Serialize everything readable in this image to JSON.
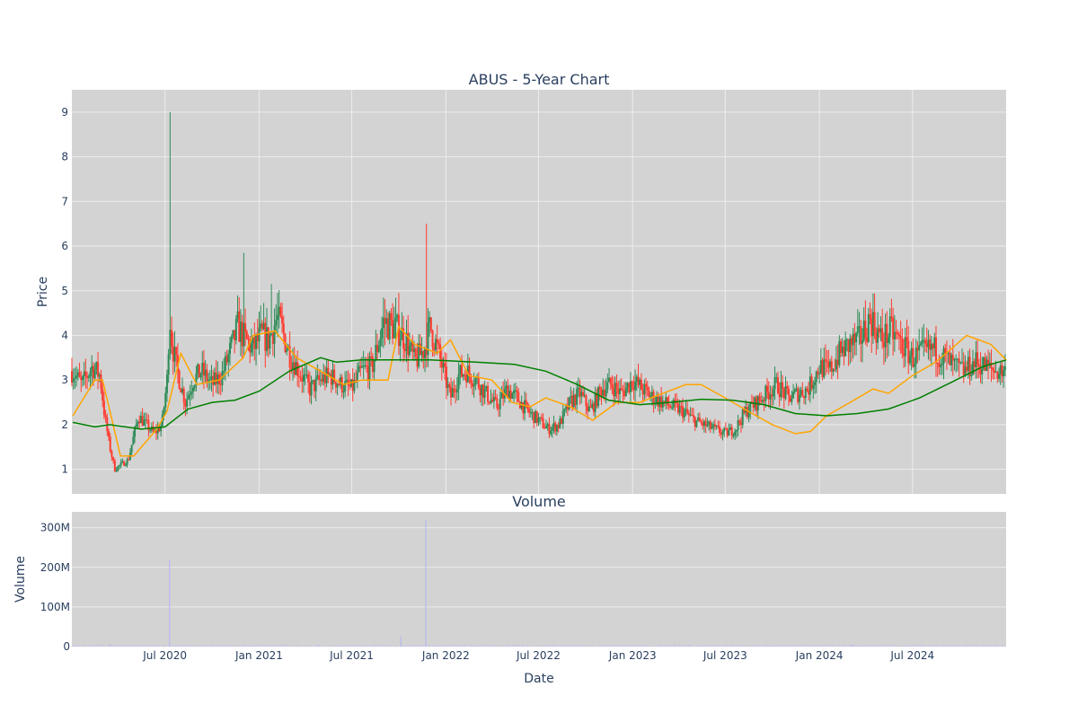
{
  "chart_data": [
    {
      "panel": "price",
      "type": "candlestick",
      "title": "ABUS - 5-Year Chart",
      "ylabel": "Price",
      "xlabel": "",
      "x_range": [
        "2020-01-01",
        "2024-12-31"
      ],
      "ylim": [
        0.45,
        9.5
      ],
      "y_ticks": [
        1,
        2,
        3,
        4,
        5,
        6,
        7,
        8,
        9
      ],
      "grid": true,
      "legend": "none",
      "colors": {
        "up": "#2e8b57",
        "down": "#ff3b30",
        "ma_short": "#ffa500",
        "ma_long": "#008000",
        "plot_bg": "#d3d3d3",
        "grid": "#ececec"
      },
      "series": [
        {
          "kind": "close_approx",
          "x": [
            "2020-01-03",
            "2020-01-20",
            "2020-02-10",
            "2020-02-25",
            "2020-03-05",
            "2020-03-15",
            "2020-03-25",
            "2020-04-05",
            "2020-04-20",
            "2020-05-10",
            "2020-05-25",
            "2020-06-10",
            "2020-06-25",
            "2020-07-05",
            "2020-07-10",
            "2020-07-15",
            "2020-07-25",
            "2020-08-10",
            "2020-08-25",
            "2020-09-10",
            "2020-10-01",
            "2020-10-20",
            "2020-11-10",
            "2020-11-20",
            "2020-12-05",
            "2020-12-20",
            "2021-01-05",
            "2021-01-20",
            "2021-02-05",
            "2021-02-15",
            "2021-03-01",
            "2021-03-20",
            "2021-04-10",
            "2021-05-01",
            "2021-05-20",
            "2021-06-10",
            "2021-07-01",
            "2021-07-20",
            "2021-08-10",
            "2021-09-01",
            "2021-09-20",
            "2021-10-01",
            "2021-10-15",
            "2021-11-01",
            "2021-11-20",
            "2021-12-01",
            "2021-12-10",
            "2021-12-20",
            "2022-01-10",
            "2022-01-25",
            "2022-02-10",
            "2022-03-01",
            "2022-03-20",
            "2022-04-10",
            "2022-05-01",
            "2022-05-20",
            "2022-06-10",
            "2022-07-01",
            "2022-07-20",
            "2022-08-10",
            "2022-09-01",
            "2022-09-20",
            "2022-10-10",
            "2022-11-01",
            "2022-11-20",
            "2022-12-10",
            "2023-01-01",
            "2023-01-20",
            "2023-02-10",
            "2023-03-01",
            "2023-03-20",
            "2023-04-10",
            "2023-05-01",
            "2023-05-20",
            "2023-06-10",
            "2023-07-01",
            "2023-07-20",
            "2023-08-10",
            "2023-09-01",
            "2023-09-20",
            "2023-10-10",
            "2023-11-01",
            "2023-11-20",
            "2023-12-10",
            "2024-01-01",
            "2024-01-20",
            "2024-02-10",
            "2024-03-01",
            "2024-03-20",
            "2024-04-10",
            "2024-05-01",
            "2024-05-20",
            "2024-06-10",
            "2024-07-01",
            "2024-07-20",
            "2024-08-10",
            "2024-09-01",
            "2024-09-20",
            "2024-10-10",
            "2024-11-01",
            "2024-11-20",
            "2024-12-10",
            "2024-12-31"
          ],
          "close": [
            3.2,
            2.9,
            3.3,
            3.1,
            2.2,
            1.5,
            1.0,
            1.1,
            1.2,
            2.2,
            2.0,
            1.8,
            2.0,
            3.0,
            4.5,
            3.8,
            3.2,
            2.5,
            3.0,
            3.2,
            2.9,
            3.1,
            3.8,
            4.2,
            3.9,
            3.7,
            4.0,
            3.9,
            4.4,
            4.1,
            3.6,
            3.2,
            2.8,
            3.0,
            3.1,
            2.9,
            2.8,
            3.2,
            3.3,
            4.3,
            4.2,
            4.1,
            3.9,
            3.4,
            3.7,
            4.2,
            3.9,
            3.5,
            2.6,
            3.1,
            3.2,
            3.0,
            2.7,
            2.4,
            2.8,
            2.6,
            2.3,
            2.1,
            1.9,
            2.0,
            2.5,
            2.7,
            2.3,
            2.8,
            2.9,
            2.7,
            3.0,
            2.8,
            2.6,
            2.5,
            2.4,
            2.3,
            2.1,
            2.0,
            1.9,
            1.8,
            1.9,
            2.3,
            2.5,
            2.7,
            2.9,
            2.6,
            2.7,
            2.8,
            3.3,
            3.2,
            3.6,
            3.8,
            3.9,
            4.4,
            3.9,
            4.1,
            3.8,
            3.5,
            3.6,
            3.7,
            3.5,
            3.3,
            3.2,
            3.4,
            3.3,
            3.2,
            3.2
          ],
          "high_spikes": [
            {
              "date": "2020-07-10",
              "high": 9.0
            },
            {
              "date": "2021-11-23",
              "high": 6.5
            },
            {
              "date": "2020-12-03",
              "high": 5.85
            },
            {
              "date": "2021-01-25",
              "high": 5.15
            }
          ]
        },
        {
          "kind": "moving_average_short",
          "x": [
            "2020-01-03",
            "2020-02-15",
            "2020-03-01",
            "2020-04-05",
            "2020-05-01",
            "2020-06-15",
            "2020-07-05",
            "2020-08-01",
            "2020-09-01",
            "2020-10-15",
            "2020-12-01",
            "2020-12-20",
            "2021-02-01",
            "2021-03-15",
            "2021-05-01",
            "2021-06-15",
            "2021-07-20",
            "2021-09-10",
            "2021-10-01",
            "2021-11-01",
            "2021-12-15",
            "2022-01-10",
            "2022-02-15",
            "2022-04-01",
            "2022-05-10",
            "2022-06-15",
            "2022-07-15",
            "2022-09-01",
            "2022-10-15",
            "2022-12-01",
            "2023-01-15",
            "2023-03-01",
            "2023-04-15",
            "2023-05-15",
            "2023-07-01",
            "2023-08-15",
            "2023-10-01",
            "2023-11-15",
            "2023-12-15",
            "2024-01-15",
            "2024-03-01",
            "2024-04-15",
            "2024-05-15",
            "2024-07-01",
            "2024-08-15",
            "2024-09-15",
            "2024-10-15",
            "2024-12-01",
            "2024-12-31"
          ],
          "values": [
            2.2,
            3.0,
            3.0,
            1.3,
            1.3,
            1.9,
            2.3,
            3.6,
            2.9,
            3.0,
            3.5,
            4.0,
            4.1,
            3.5,
            3.2,
            2.9,
            3.0,
            3.0,
            4.2,
            3.8,
            3.6,
            3.9,
            3.1,
            3.0,
            2.5,
            2.4,
            2.6,
            2.4,
            2.1,
            2.5,
            2.5,
            2.7,
            2.9,
            2.9,
            2.6,
            2.3,
            2.0,
            1.8,
            1.85,
            2.2,
            2.5,
            2.8,
            2.7,
            3.1,
            3.4,
            3.7,
            4.0,
            3.8,
            3.45
          ]
        },
        {
          "kind": "moving_average_long",
          "x": [
            "2020-01-03",
            "2020-02-15",
            "2020-03-15",
            "2020-04-15",
            "2020-05-15",
            "2020-07-01",
            "2020-08-15",
            "2020-10-01",
            "2020-11-15",
            "2021-01-01",
            "2021-03-01",
            "2021-05-01",
            "2021-06-01",
            "2021-07-20",
            "2021-10-01",
            "2021-12-01",
            "2022-03-01",
            "2022-05-15",
            "2022-07-15",
            "2022-09-15",
            "2022-11-15",
            "2023-01-15",
            "2023-03-15",
            "2023-05-15",
            "2023-07-15",
            "2023-09-15",
            "2023-11-15",
            "2024-01-15",
            "2024-03-15",
            "2024-05-15",
            "2024-07-15",
            "2024-09-15",
            "2024-11-15",
            "2024-12-31"
          ],
          "values": [
            2.05,
            1.95,
            2.0,
            1.95,
            1.9,
            1.95,
            2.35,
            2.5,
            2.55,
            2.75,
            3.2,
            3.5,
            3.4,
            3.45,
            3.45,
            3.45,
            3.4,
            3.35,
            3.2,
            2.9,
            2.55,
            2.45,
            2.5,
            2.57,
            2.55,
            2.45,
            2.25,
            2.2,
            2.25,
            2.35,
            2.6,
            2.95,
            3.3,
            3.45
          ]
        }
      ]
    },
    {
      "panel": "volume",
      "type": "bar",
      "title": "Volume",
      "xlabel": "Date",
      "ylabel": "Volume",
      "ylim": [
        0,
        340000000
      ],
      "y_ticks": [
        0,
        100000000,
        200000000,
        300000000
      ],
      "y_tick_labels": [
        "0",
        "100M",
        "200M",
        "300M"
      ],
      "x_ticks": [
        "2020-07-01",
        "2021-01-01",
        "2021-07-01",
        "2022-01-01",
        "2022-07-01",
        "2023-01-01",
        "2023-07-01",
        "2024-01-01",
        "2024-07-01"
      ],
      "x_tick_labels": [
        "Jul 2020",
        "Jan 2021",
        "Jul 2021",
        "Jan 2022",
        "Jul 2022",
        "Jan 2023",
        "Jul 2023",
        "Jan 2024",
        "Jul 2024"
      ],
      "grid": true,
      "colors": {
        "bar": "#b8b8f0",
        "plot_bg": "#d3d3d3"
      },
      "baseline_volume": 2500000,
      "spikes": [
        {
          "date": "2020-07-10",
          "volume": 220000000
        },
        {
          "date": "2021-11-23",
          "volume": 320000000
        },
        {
          "date": "2021-10-05",
          "volume": 25000000
        },
        {
          "date": "2020-03-15",
          "volume": 6000000
        },
        {
          "date": "2024-03-05",
          "volume": 5000000
        }
      ]
    }
  ]
}
